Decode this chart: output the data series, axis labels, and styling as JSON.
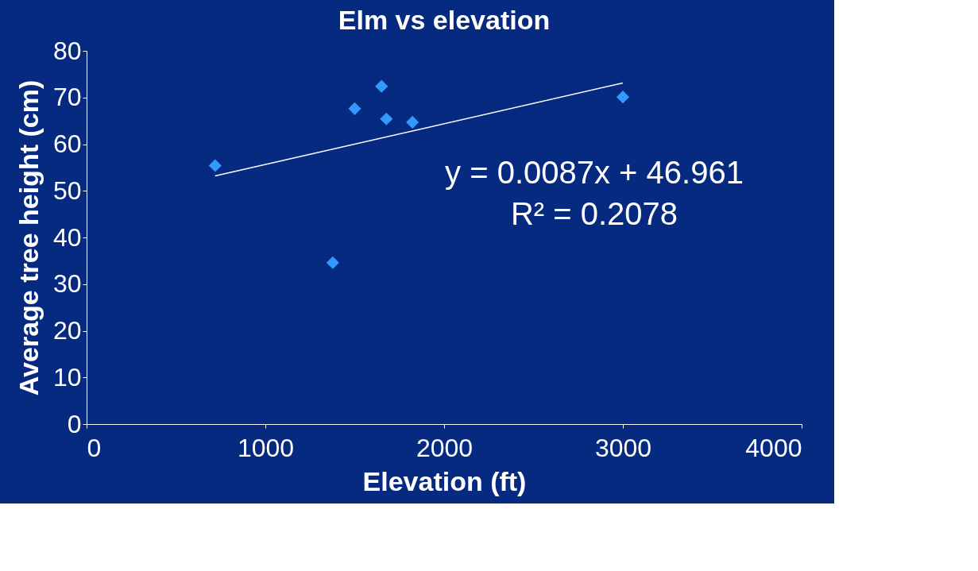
{
  "chart_data": {
    "type": "scatter",
    "title": "Elm vs elevation",
    "xlabel": "Elevation (ft)",
    "ylabel": "Average tree  height (cm)",
    "xlim": [
      0,
      4000
    ],
    "xticks": [
      0,
      1000,
      2000,
      3000,
      4000
    ],
    "ylim": [
      0,
      80
    ],
    "yticks": [
      0,
      10,
      20,
      30,
      40,
      50,
      60,
      70,
      80
    ],
    "grid": false,
    "series": [
      {
        "color": "#3399ff",
        "marker": "diamond",
        "x": [
          719,
          1377,
          1500,
          1650,
          1677,
          1823,
          3000
        ],
        "values": [
          55.4,
          34.6,
          67.6,
          72.4,
          65.4,
          64.7,
          70.1
        ]
      },
      {
        "type": "line",
        "color": "#ffffff",
        "marker": "none",
        "x": [
          719,
          3000
        ],
        "values": [
          53.2,
          73.1
        ]
      }
    ],
    "annotations": [
      "y = 0.0087x + 46.961",
      "R² = 0.2078"
    ]
  }
}
